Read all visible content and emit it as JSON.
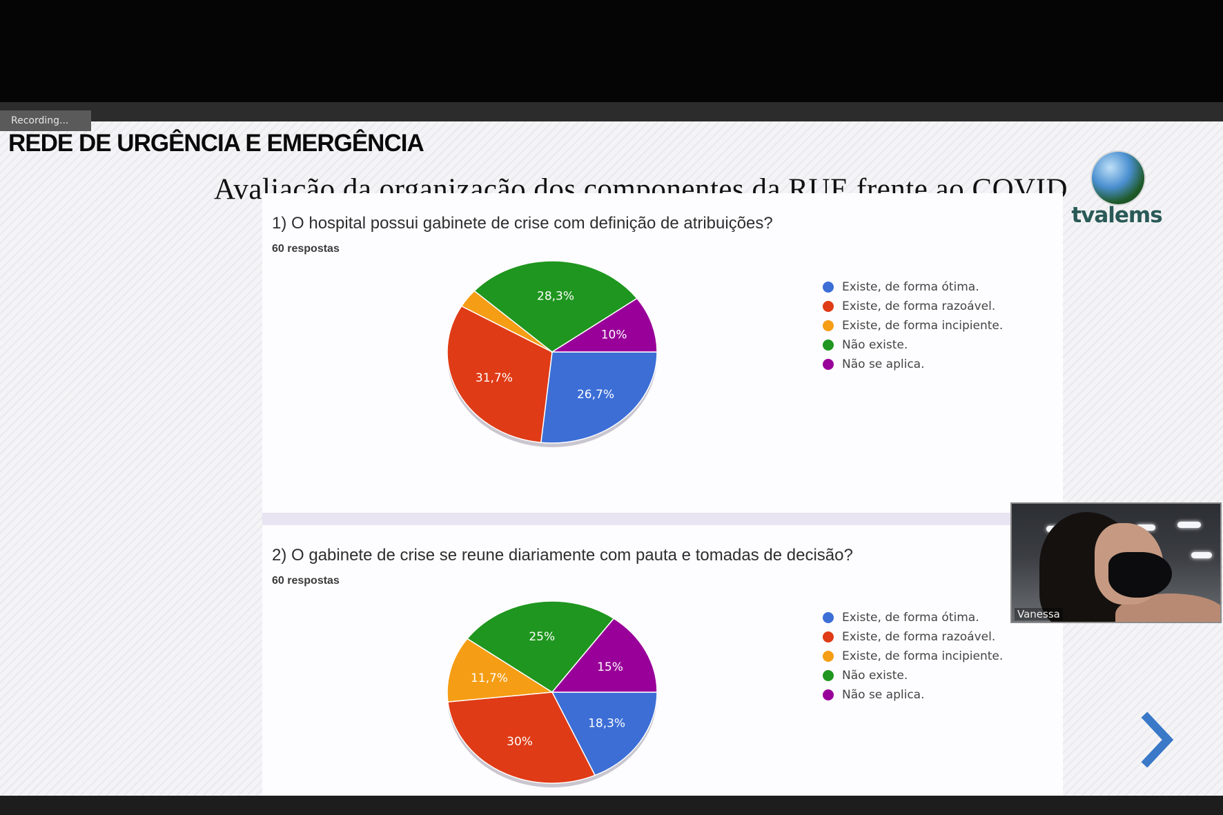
{
  "recording_label": "Recording...",
  "slide": {
    "section_title": "REDE DE URGÊNCIA E EMERGÊNCIA",
    "main_title": "Avaliação da organização dos componentes da RUE frente ao COVID",
    "logo_text": "tvalems"
  },
  "participant": {
    "name": "Vanessa"
  },
  "legend": [
    {
      "label": "Existe, de forma ótima.",
      "color": "#3c6ed6"
    },
    {
      "label": "Existe, de forma razoável.",
      "color": "#df3b16"
    },
    {
      "label": "Existe, de forma incipiente.",
      "color": "#f59d14"
    },
    {
      "label": "Não existe.",
      "color": "#1f961f"
    },
    {
      "label": "Não se aplica.",
      "color": "#990099"
    }
  ],
  "chart_data": [
    {
      "type": "pie",
      "title": "1) O hospital possui gabinete de crise com definição de atribuições?",
      "subtitle": "60 respostas",
      "categories": [
        "Existe, de forma ótima.",
        "Existe, de forma razoável.",
        "Existe, de forma incipiente.",
        "Não existe.",
        "Não se aplica."
      ],
      "values": [
        26.7,
        31.7,
        3.3,
        28.3,
        10
      ],
      "data_labels": [
        "26,7%",
        "31,7%",
        "",
        "28,3%",
        "10%"
      ],
      "colors": [
        "#3c6ed6",
        "#df3b16",
        "#f59d14",
        "#1f961f",
        "#990099"
      ],
      "legend_position": "right"
    },
    {
      "type": "pie",
      "title": "2) O gabinete de crise se reune diariamente com pauta e tomadas de decisão?",
      "subtitle": "60 respostas",
      "categories": [
        "Existe, de forma ótima.",
        "Existe, de forma razoável.",
        "Existe, de forma incipiente.",
        "Não existe.",
        "Não se aplica."
      ],
      "values": [
        18.3,
        30,
        11.7,
        25,
        15
      ],
      "data_labels": [
        "18,3%",
        "30%",
        "11,7%",
        "25%",
        "15%"
      ],
      "colors": [
        "#3c6ed6",
        "#df3b16",
        "#f59d14",
        "#1f961f",
        "#990099"
      ],
      "legend_position": "right"
    }
  ]
}
